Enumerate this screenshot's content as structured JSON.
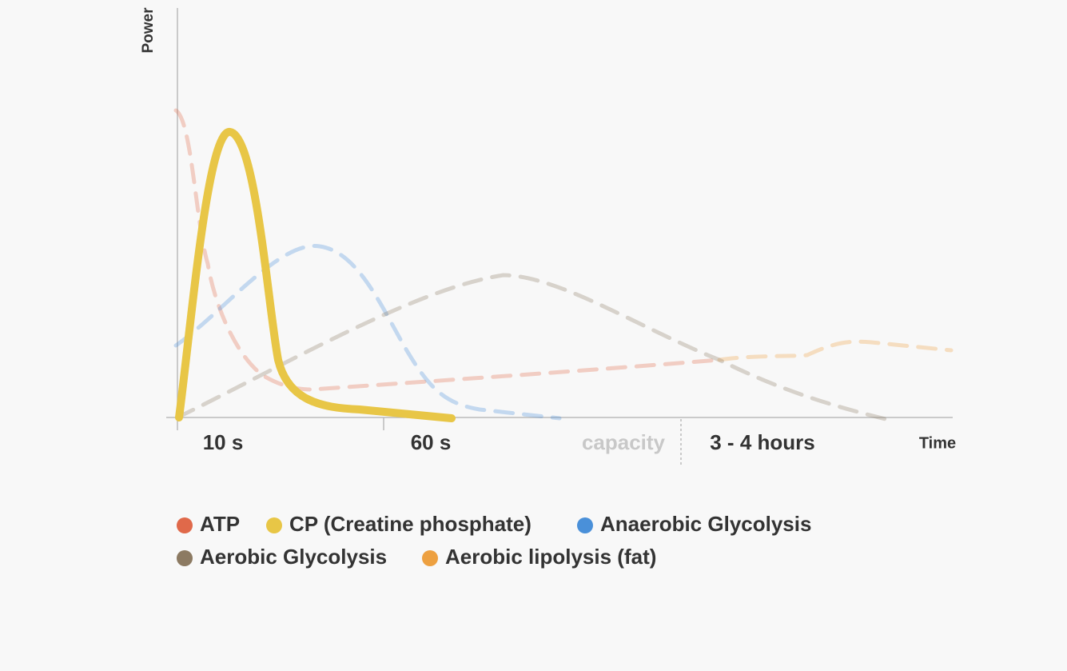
{
  "axes": {
    "y_label": "Power",
    "x_label": "Time"
  },
  "time_labels": [
    "10 s",
    "60 s",
    "capacity",
    "3 - 4 hours"
  ],
  "legend": [
    {
      "name": "ATP",
      "color": "#e0694a"
    },
    {
      "name": "CP (Creatine phosphate)",
      "color": "#e8c646"
    },
    {
      "name": "Anaerobic Glycolysis",
      "color": "#4a90d9"
    },
    {
      "name": "Aerobic Glycolysis",
      "color": "#8c7a62"
    },
    {
      "name": "Aerobic lipolysis (fat)",
      "color": "#eda040"
    }
  ]
}
